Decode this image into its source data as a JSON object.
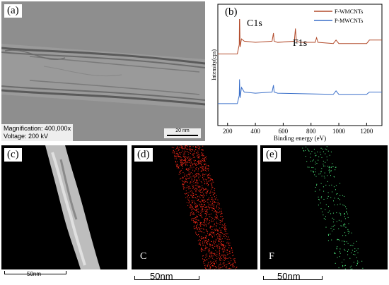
{
  "panel_a": {
    "label": "(a)",
    "magnification": "Magnification: 400,000x",
    "voltage": "Voltage: 200 kV",
    "scale_bar": "20 nm"
  },
  "panel_b": {
    "label": "(b)",
    "peak_c1s": "C1s",
    "peak_f1s": "F1s"
  },
  "panel_c": {
    "label": "(c)",
    "scale_bar": "50nm"
  },
  "panel_d": {
    "label": "(d)",
    "element": "C",
    "scale_bar": "50nm",
    "dot_color": "#ff2a1a"
  },
  "panel_e": {
    "label": "(e)",
    "element": "F",
    "scale_bar": "50nm",
    "dot_color": "#55ff88"
  },
  "chart_data": {
    "type": "line",
    "xlabel": "Binding energy (eV)",
    "ylabel": "Intensity(cps)",
    "xlim": [
      130,
      1310
    ],
    "xticks": [
      200,
      400,
      600,
      800,
      1000,
      1200
    ],
    "legend_position": "top-right",
    "series": [
      {
        "name": "F-WMCNTs",
        "color": "#b24a2a",
        "x": [
          130,
          270,
          284,
          286,
          290,
          300,
          320,
          400,
          520,
          530,
          535,
          560,
          680,
          688,
          695,
          720,
          830,
          840,
          850,
          960,
          980,
          1000,
          1200,
          1220,
          1240,
          1310
        ],
        "y": [
          62,
          62,
          70,
          100,
          68,
          75,
          73,
          72,
          73,
          80,
          73,
          72,
          73,
          84,
          73,
          72,
          72,
          76,
          72,
          71,
          74,
          71,
          71,
          74,
          74,
          74
        ]
      },
      {
        "name": "P-MWCNTs",
        "color": "#3a6fc9",
        "x": [
          130,
          270,
          284,
          286,
          290,
          300,
          320,
          400,
          520,
          530,
          535,
          560,
          960,
          980,
          1000,
          1200,
          1220,
          1240,
          1310
        ],
        "y": [
          19,
          19,
          26,
          40,
          24,
          33,
          29,
          28,
          29,
          35,
          29,
          28,
          27,
          30,
          27,
          27,
          29,
          29,
          29
        ]
      }
    ]
  }
}
